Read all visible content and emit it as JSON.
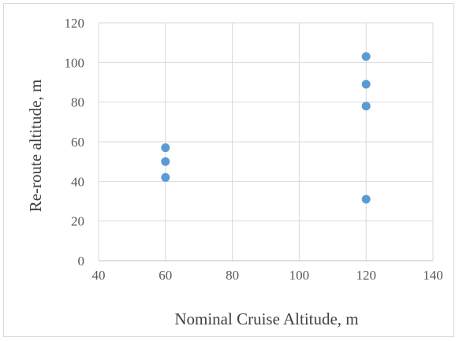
{
  "chart_data": {
    "type": "scatter",
    "title": "",
    "xlabel": "Nominal Cruise Altitude, m",
    "ylabel": "Re-route altitude, m",
    "xlim": [
      40,
      140
    ],
    "ylim": [
      0,
      120
    ],
    "xticks": [
      "40",
      "60",
      "80",
      "100",
      "120",
      "140"
    ],
    "yticks": [
      "0",
      "20",
      "40",
      "60",
      "80",
      "100",
      "120"
    ],
    "grid": true,
    "legend": "none",
    "series": [
      {
        "x": [
          60,
          60,
          60,
          120,
          120,
          120,
          120
        ],
        "y": [
          57,
          50,
          42,
          103,
          89,
          78,
          31
        ],
        "color": "#5b9bd5"
      }
    ]
  }
}
